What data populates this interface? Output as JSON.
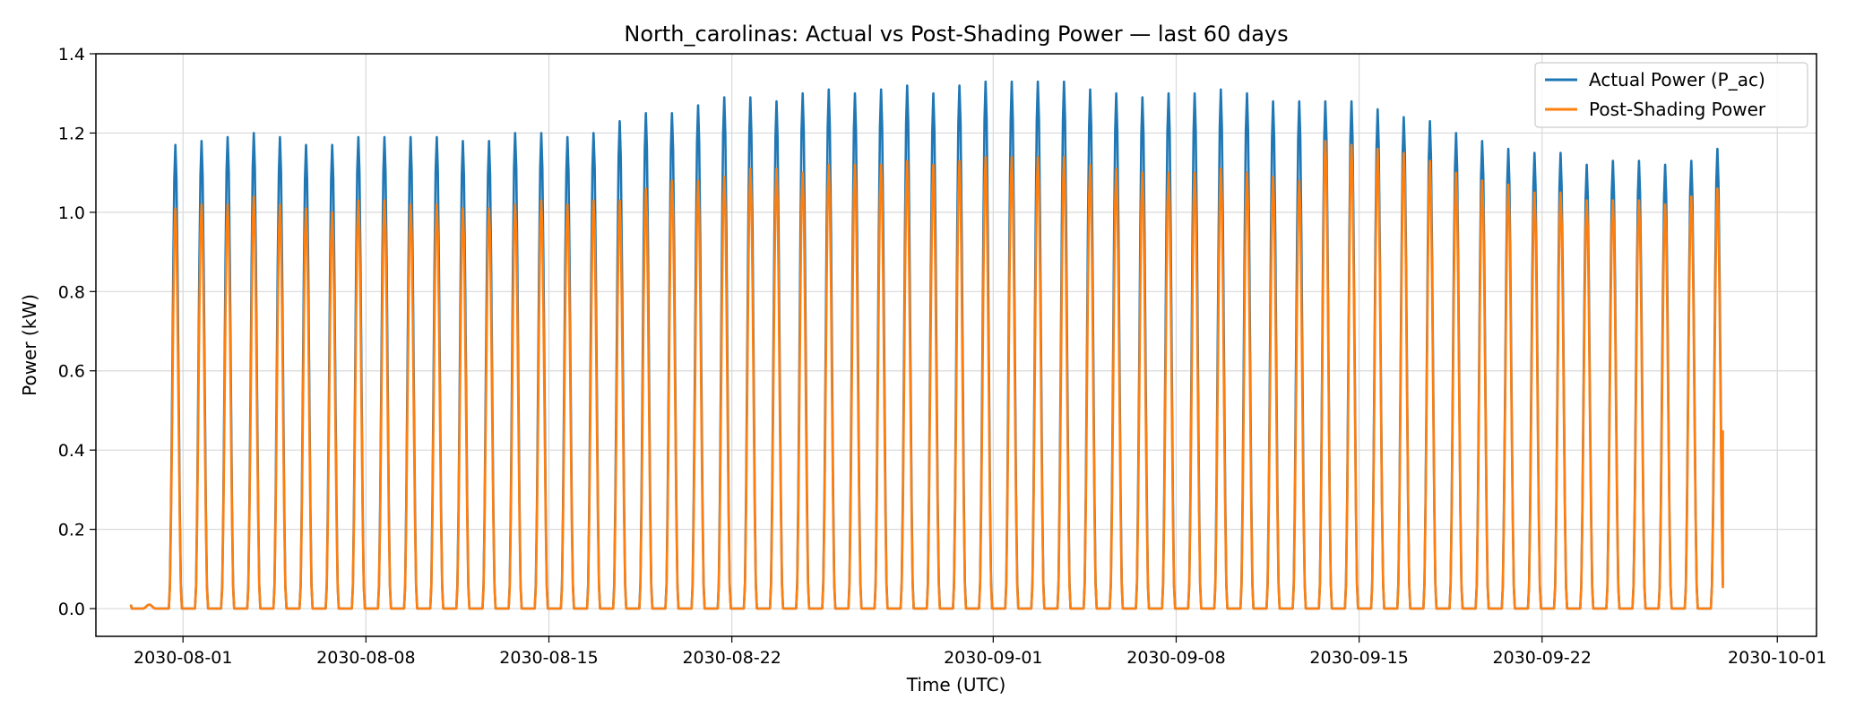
{
  "chart_data": {
    "type": "line",
    "title": "North_carolinas: Actual vs Post-Shading Power — last 60 days",
    "xlabel": "Time (UTC)",
    "ylabel": "Power (kW)",
    "xlim": [
      "2030-07-28T16:00",
      "2030-10-02T12:00"
    ],
    "ylim": [
      -0.07,
      1.4
    ],
    "x_ticks": [
      "2030-08-01",
      "2030-08-08",
      "2030-08-15",
      "2030-08-22",
      "2030-09-01",
      "2030-09-08",
      "2030-09-15",
      "2030-09-22",
      "2030-10-01"
    ],
    "y_ticks": [
      "0.0",
      "0.2",
      "0.4",
      "0.6",
      "0.8",
      "1.0",
      "1.2",
      "1.4"
    ],
    "grid": true,
    "legend_position": "top-right",
    "series_start": "2030-07-30T00:00",
    "series_end": "2030-09-28T22:00",
    "daily_peak_dates": [
      "2030-07-30",
      "2030-07-31",
      "2030-08-01",
      "2030-08-02",
      "2030-08-03",
      "2030-08-04",
      "2030-08-05",
      "2030-08-06",
      "2030-08-07",
      "2030-08-08",
      "2030-08-09",
      "2030-08-10",
      "2030-08-11",
      "2030-08-12",
      "2030-08-13",
      "2030-08-14",
      "2030-08-15",
      "2030-08-16",
      "2030-08-17",
      "2030-08-18",
      "2030-08-19",
      "2030-08-20",
      "2030-08-21",
      "2030-08-22",
      "2030-08-23",
      "2030-08-24",
      "2030-08-25",
      "2030-08-26",
      "2030-08-27",
      "2030-08-28",
      "2030-08-29",
      "2030-08-30",
      "2030-08-31",
      "2030-09-01",
      "2030-09-02",
      "2030-09-03",
      "2030-09-04",
      "2030-09-05",
      "2030-09-06",
      "2030-09-07",
      "2030-09-08",
      "2030-09-09",
      "2030-09-10",
      "2030-09-11",
      "2030-09-12",
      "2030-09-13",
      "2030-09-14",
      "2030-09-15",
      "2030-09-16",
      "2030-09-17",
      "2030-09-18",
      "2030-09-19",
      "2030-09-20",
      "2030-09-21",
      "2030-09-22",
      "2030-09-23",
      "2030-09-24",
      "2030-09-25",
      "2030-09-26",
      "2030-09-27",
      "2030-09-28"
    ],
    "series": [
      {
        "name": "Actual Power (P_ac)",
        "color": "#1f77b4",
        "daily_peaks": [
          0.01,
          1.17,
          1.18,
          1.19,
          1.2,
          1.19,
          1.17,
          1.17,
          1.19,
          1.19,
          1.19,
          1.19,
          1.18,
          1.18,
          1.2,
          1.2,
          1.19,
          1.2,
          1.23,
          1.25,
          1.25,
          1.27,
          1.29,
          1.29,
          1.28,
          1.3,
          1.31,
          1.3,
          1.31,
          1.32,
          1.3,
          1.32,
          1.33,
          1.33,
          1.33,
          1.33,
          1.31,
          1.3,
          1.29,
          1.3,
          1.3,
          1.31,
          1.3,
          1.28,
          1.28,
          1.28,
          1.28,
          1.26,
          1.24,
          1.23,
          1.2,
          1.18,
          1.16,
          1.15,
          1.15,
          1.12,
          1.13,
          1.13,
          1.12,
          1.13,
          1.16
        ]
      },
      {
        "name": "Post-Shading Power",
        "color": "#ff7f0e",
        "daily_peaks": [
          0.01,
          1.01,
          1.02,
          1.02,
          1.04,
          1.02,
          1.01,
          1.0,
          1.03,
          1.03,
          1.02,
          1.02,
          1.01,
          1.01,
          1.02,
          1.03,
          1.02,
          1.03,
          1.03,
          1.06,
          1.08,
          1.08,
          1.09,
          1.11,
          1.11,
          1.1,
          1.12,
          1.12,
          1.12,
          1.13,
          1.12,
          1.13,
          1.14,
          1.14,
          1.14,
          1.14,
          1.12,
          1.11,
          1.1,
          1.1,
          1.1,
          1.11,
          1.1,
          1.09,
          1.08,
          1.18,
          1.17,
          1.16,
          1.15,
          1.13,
          1.1,
          1.08,
          1.07,
          1.05,
          1.05,
          1.03,
          1.03,
          1.03,
          1.02,
          1.04,
          1.06
        ],
        "last_value": 0.45
      }
    ]
  }
}
